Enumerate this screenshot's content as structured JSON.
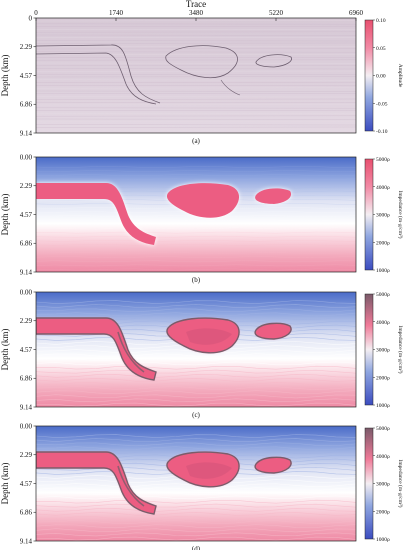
{
  "chart_data": [
    {
      "type": "heatmap",
      "panel_label": "(a)",
      "xlabel": "Trace",
      "ylabel": "Depth (km)",
      "x_ticks": [
        "0",
        "1740",
        "3480",
        "5220",
        "6960"
      ],
      "y_ticks": [
        "0",
        "2.29",
        "4.57",
        "6.86",
        "9.14"
      ],
      "xlim": [
        0,
        6960
      ],
      "ylim": [
        0,
        9.14
      ],
      "colorbar": {
        "label": "Amplitude",
        "ticks": [
          "0.10",
          "0.05",
          "0.00",
          "-0.05",
          "-0.10"
        ],
        "range": [
          -0.1,
          0.1
        ],
        "colors": [
          "#3b4cc0",
          "#ffffff",
          "#e8506f"
        ]
      }
    },
    {
      "type": "heatmap",
      "panel_label": "(b)",
      "xlabel": "",
      "ylabel": "Depth (km)",
      "x_ticks": [],
      "y_ticks": [
        "0.00",
        "2.29",
        "4.57",
        "6.86",
        "9.14"
      ],
      "xlim": [
        0,
        6960
      ],
      "ylim": [
        0,
        9.14
      ],
      "colorbar": {
        "label": "Impedance (m·g/cm³)",
        "ticks": [
          "5000ρ",
          "4000ρ",
          "3000ρ",
          "2000ρ",
          "1000ρ"
        ],
        "range": [
          1000,
          5000
        ],
        "colors": [
          "#3b4cc0",
          "#ffffff",
          "#e8506f"
        ]
      }
    },
    {
      "type": "heatmap",
      "panel_label": "(c)",
      "xlabel": "",
      "ylabel": "Depth (km)",
      "x_ticks": [],
      "y_ticks": [
        "0.00",
        "2.29",
        "4.57",
        "6.86",
        "9.14"
      ],
      "xlim": [
        0,
        6960
      ],
      "ylim": [
        0,
        9.14
      ],
      "colorbar": {
        "label": "Impedance (m·g/cm³)",
        "ticks": [
          "5000ρ",
          "4000ρ",
          "3000ρ",
          "2000ρ",
          "1000ρ"
        ],
        "range": [
          1000,
          5000
        ],
        "colors": [
          "#3b4cc0",
          "#ffffff",
          "#e8506f",
          "#7a5a6a"
        ]
      }
    },
    {
      "type": "heatmap",
      "panel_label": "(d)",
      "xlabel": "",
      "ylabel": "Depth (km)",
      "x_ticks": [],
      "y_ticks": [
        "0.00",
        "2.29",
        "4.57",
        "6.86",
        "9.14"
      ],
      "xlim": [
        0,
        6960
      ],
      "ylim": [
        0,
        9.14
      ],
      "colorbar": {
        "label": "Impedance (m·g/cm³)",
        "ticks": [
          "5000ρ",
          "4000ρ",
          "3000ρ",
          "2000ρ",
          "1000ρ"
        ],
        "range": [
          1000,
          5000
        ],
        "colors": [
          "#3b4cc0",
          "#ffffff",
          "#e8506f",
          "#7a5a6a"
        ]
      }
    }
  ]
}
